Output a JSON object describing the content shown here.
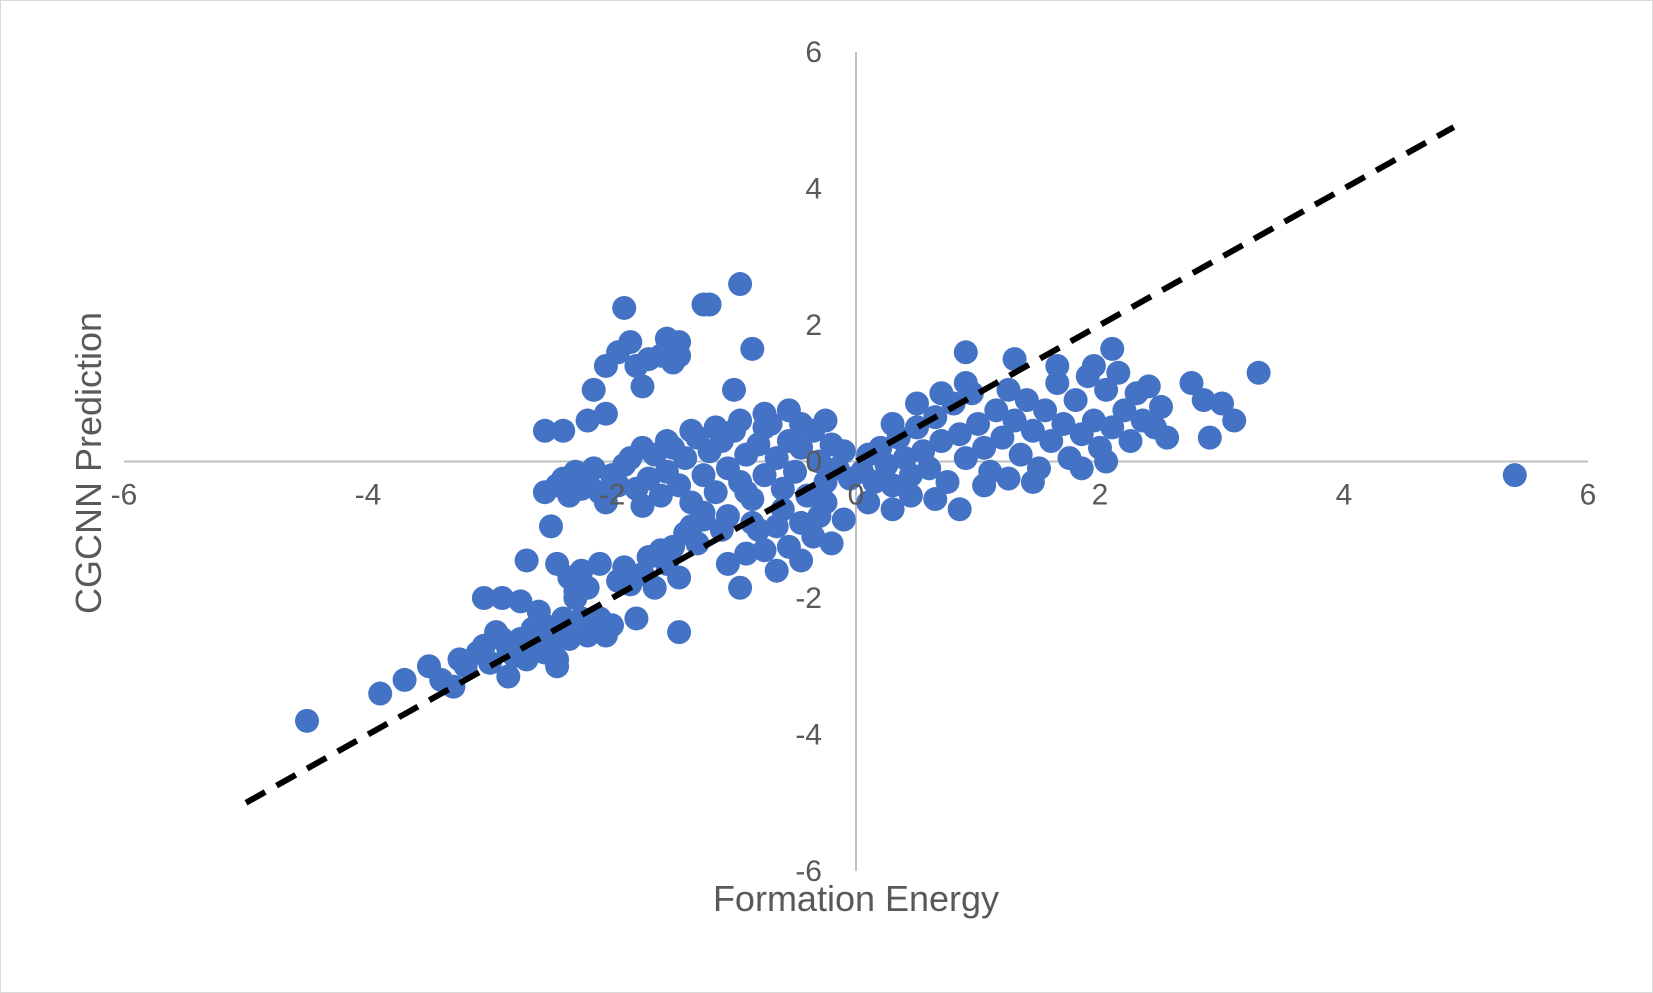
{
  "chart_data": {
    "type": "scatter",
    "title": "",
    "xlabel": "Formation Energy",
    "ylabel": "CGCNN Prediction",
    "xlim": [
      -6,
      6
    ],
    "ylim": [
      -6,
      6
    ],
    "xticks": [
      -6,
      -4,
      -2,
      0,
      2,
      4,
      6
    ],
    "yticks": [
      -6,
      -4,
      -2,
      0,
      2,
      4,
      6
    ],
    "grid": false,
    "legend": "none",
    "colors": {
      "points": "#4472C4",
      "reference_line": "#000000",
      "axes": "#bfbfbf"
    },
    "reference_line": {
      "style": "dashed",
      "x": [
        -5,
        4.9
      ],
      "y": [
        -5,
        4.9
      ]
    },
    "series": [
      {
        "points": [
          [
            -4.5,
            -3.8
          ],
          [
            -3.9,
            -3.4
          ],
          [
            -3.7,
            -3.2
          ],
          [
            -3.5,
            -3.0
          ],
          [
            -3.4,
            -3.2
          ],
          [
            -3.3,
            -3.3
          ],
          [
            -3.25,
            -2.9
          ],
          [
            -3.2,
            -3.0
          ],
          [
            -3.1,
            -2.8
          ],
          [
            -3.05,
            -2.7
          ],
          [
            -3.0,
            -2.95
          ],
          [
            -2.95,
            -2.5
          ],
          [
            -2.9,
            -2.6
          ],
          [
            -2.85,
            -2.75
          ],
          [
            -2.8,
            -2.85
          ],
          [
            -2.75,
            -2.6
          ],
          [
            -2.7,
            -2.9
          ],
          [
            -2.65,
            -2.45
          ],
          [
            -2.6,
            -2.7
          ],
          [
            -2.55,
            -2.8
          ],
          [
            -2.5,
            -2.5
          ],
          [
            -2.45,
            -2.9
          ],
          [
            -2.4,
            -2.3
          ],
          [
            -2.35,
            -2.6
          ],
          [
            -3.05,
            -2.0
          ],
          [
            -2.9,
            -2.0
          ],
          [
            -2.75,
            -2.05
          ],
          [
            -2.6,
            -2.2
          ],
          [
            -2.55,
            -2.4
          ],
          [
            -2.5,
            -2.7
          ],
          [
            -2.45,
            -3.0
          ],
          [
            -2.4,
            -2.5
          ],
          [
            -2.85,
            -3.15
          ],
          [
            -2.7,
            -1.45
          ],
          [
            -2.5,
            -0.95
          ],
          [
            -2.45,
            -1.5
          ],
          [
            -2.35,
            -1.7
          ],
          [
            -2.3,
            -2.0
          ],
          [
            -2.25,
            -2.3
          ],
          [
            -2.2,
            -2.55
          ],
          [
            -2.15,
            -2.45
          ],
          [
            -2.1,
            -2.3
          ],
          [
            -2.05,
            -2.55
          ],
          [
            -2.0,
            -2.4
          ],
          [
            -2.3,
            -1.9
          ],
          [
            -2.25,
            -1.6
          ],
          [
            -2.2,
            -1.85
          ],
          [
            -2.1,
            -1.5
          ],
          [
            -1.95,
            -1.75
          ],
          [
            -1.9,
            -1.55
          ],
          [
            -1.85,
            -1.8
          ],
          [
            -1.8,
            -2.3
          ],
          [
            -1.75,
            -1.65
          ],
          [
            -1.7,
            -1.4
          ],
          [
            -1.65,
            -1.85
          ],
          [
            -1.6,
            -1.3
          ],
          [
            -1.55,
            -1.5
          ],
          [
            -1.5,
            -1.25
          ],
          [
            -1.45,
            -2.5
          ],
          [
            -1.45,
            -1.7
          ],
          [
            -1.4,
            -1.05
          ],
          [
            -1.35,
            -0.95
          ],
          [
            -1.3,
            -1.2
          ],
          [
            -1.25,
            -0.85
          ],
          [
            -1.1,
            -1.0
          ],
          [
            -1.05,
            -1.5
          ],
          [
            -0.95,
            -1.85
          ],
          [
            -0.9,
            -1.35
          ],
          [
            -0.8,
            -1.0
          ],
          [
            -0.75,
            -1.3
          ],
          [
            -0.65,
            -1.6
          ],
          [
            -0.55,
            -1.25
          ],
          [
            -0.45,
            -1.45
          ],
          [
            -0.35,
            -1.1
          ],
          [
            -0.3,
            -0.8
          ],
          [
            -0.2,
            -1.2
          ],
          [
            -0.1,
            -0.85
          ],
          [
            -2.55,
            -0.45
          ],
          [
            -2.45,
            -0.35
          ],
          [
            -2.4,
            -0.25
          ],
          [
            -2.35,
            -0.5
          ],
          [
            -2.3,
            -0.15
          ],
          [
            -2.25,
            -0.4
          ],
          [
            -2.2,
            -0.3
          ],
          [
            -2.15,
            -0.1
          ],
          [
            -2.1,
            -0.45
          ],
          [
            -2.05,
            -0.6
          ],
          [
            -2.0,
            -0.2
          ],
          [
            -1.95,
            -0.35
          ],
          [
            -1.9,
            -0.05
          ],
          [
            -1.85,
            0.05
          ],
          [
            -1.8,
            -0.4
          ],
          [
            -1.75,
            -0.65
          ],
          [
            -1.7,
            -0.25
          ],
          [
            -1.65,
            0.1
          ],
          [
            -1.6,
            -0.5
          ],
          [
            -1.55,
            -0.15
          ],
          [
            -1.5,
            0.2
          ],
          [
            -1.45,
            -0.35
          ],
          [
            -1.4,
            0.05
          ],
          [
            -1.35,
            -0.6
          ],
          [
            -1.3,
            0.35
          ],
          [
            -1.25,
            -0.2
          ],
          [
            -1.2,
            0.15
          ],
          [
            -1.15,
            -0.45
          ],
          [
            -1.1,
            0.3
          ],
          [
            -1.05,
            -0.1
          ],
          [
            -1.0,
            0.45
          ],
          [
            -0.95,
            -0.3
          ],
          [
            -0.9,
            0.1
          ],
          [
            -0.85,
            -0.55
          ],
          [
            -0.8,
            0.25
          ],
          [
            -0.75,
            -0.2
          ],
          [
            -0.7,
            0.55
          ],
          [
            -0.65,
            0.05
          ],
          [
            -0.6,
            -0.4
          ],
          [
            -0.55,
            0.3
          ],
          [
            -0.5,
            -0.15
          ],
          [
            -0.45,
            0.2
          ],
          [
            -0.4,
            -0.5
          ],
          [
            -0.35,
            0.45
          ],
          [
            -0.3,
            0.0
          ],
          [
            -0.25,
            -0.3
          ],
          [
            -0.2,
            0.25
          ],
          [
            -0.15,
            -0.1
          ],
          [
            -0.1,
            0.15
          ],
          [
            -0.05,
            -0.25
          ],
          [
            -1.75,
            0.2
          ],
          [
            -1.55,
            0.3
          ],
          [
            -1.35,
            0.45
          ],
          [
            -1.15,
            0.5
          ],
          [
            -0.95,
            0.6
          ],
          [
            -0.75,
            0.7
          ],
          [
            -0.55,
            0.75
          ],
          [
            -0.45,
            0.55
          ],
          [
            -0.25,
            0.6
          ],
          [
            -1.25,
            -0.75
          ],
          [
            -1.05,
            -0.8
          ],
          [
            -0.85,
            -0.9
          ],
          [
            -0.65,
            -0.95
          ],
          [
            -0.45,
            -0.9
          ],
          [
            -0.25,
            -0.6
          ],
          [
            -2.55,
            0.45
          ],
          [
            -2.4,
            0.45
          ],
          [
            -2.2,
            0.6
          ],
          [
            -2.15,
            1.05
          ],
          [
            -2.05,
            0.7
          ],
          [
            -2.05,
            1.4
          ],
          [
            -1.95,
            1.6
          ],
          [
            -1.9,
            2.25
          ],
          [
            -1.85,
            1.75
          ],
          [
            -1.8,
            1.4
          ],
          [
            -1.75,
            1.1
          ],
          [
            -1.7,
            1.5
          ],
          [
            -1.6,
            1.55
          ],
          [
            -1.55,
            1.8
          ],
          [
            -1.5,
            1.45
          ],
          [
            -1.45,
            1.75
          ],
          [
            -1.45,
            1.55
          ],
          [
            -1.25,
            2.3
          ],
          [
            -1.2,
            2.3
          ],
          [
            -0.95,
            2.6
          ],
          [
            -0.85,
            1.65
          ],
          [
            -1.0,
            1.05
          ],
          [
            -0.75,
            0.5
          ],
          [
            0.05,
            -0.15
          ],
          [
            0.1,
            0.1
          ],
          [
            0.15,
            -0.3
          ],
          [
            0.2,
            0.2
          ],
          [
            0.25,
            -0.05
          ],
          [
            0.3,
            -0.35
          ],
          [
            0.35,
            0.35
          ],
          [
            0.4,
            0.05
          ],
          [
            0.45,
            -0.2
          ],
          [
            0.5,
            0.5
          ],
          [
            0.55,
            0.15
          ],
          [
            0.6,
            -0.1
          ],
          [
            0.65,
            0.65
          ],
          [
            0.7,
            0.3
          ],
          [
            0.75,
            -0.3
          ],
          [
            0.8,
            0.85
          ],
          [
            0.85,
            0.4
          ],
          [
            0.9,
            0.05
          ],
          [
            0.95,
            1.0
          ],
          [
            1.0,
            0.55
          ],
          [
            1.05,
            0.2
          ],
          [
            1.1,
            -0.15
          ],
          [
            1.15,
            0.75
          ],
          [
            1.2,
            0.35
          ],
          [
            1.25,
            1.05
          ],
          [
            1.3,
            0.6
          ],
          [
            1.35,
            0.1
          ],
          [
            1.4,
            0.9
          ],
          [
            1.45,
            0.45
          ],
          [
            1.5,
            -0.1
          ],
          [
            1.55,
            0.75
          ],
          [
            1.6,
            0.3
          ],
          [
            1.65,
            1.15
          ],
          [
            1.7,
            0.55
          ],
          [
            1.75,
            0.05
          ],
          [
            1.8,
            0.9
          ],
          [
            1.85,
            0.4
          ],
          [
            1.9,
            1.25
          ],
          [
            1.95,
            0.6
          ],
          [
            2.0,
            0.2
          ],
          [
            2.05,
            1.05
          ],
          [
            2.1,
            0.5
          ],
          [
            2.15,
            1.3
          ],
          [
            2.2,
            0.75
          ],
          [
            2.25,
            0.3
          ],
          [
            2.3,
            1.0
          ],
          [
            2.35,
            0.6
          ],
          [
            2.4,
            1.1
          ],
          [
            2.45,
            0.5
          ],
          [
            2.5,
            0.8
          ],
          [
            0.3,
            0.55
          ],
          [
            0.5,
            0.85
          ],
          [
            0.7,
            1.0
          ],
          [
            0.9,
            1.15
          ],
          [
            0.45,
            -0.5
          ],
          [
            0.65,
            -0.55
          ],
          [
            0.85,
            -0.7
          ],
          [
            1.05,
            -0.35
          ],
          [
            1.25,
            -0.25
          ],
          [
            1.45,
            -0.3
          ],
          [
            1.65,
            1.4
          ],
          [
            1.95,
            1.4
          ],
          [
            0.1,
            -0.6
          ],
          [
            0.3,
            -0.7
          ],
          [
            1.85,
            -0.1
          ],
          [
            2.05,
            0.0
          ],
          [
            -0.9,
            -0.45
          ],
          [
            -0.6,
            -0.7
          ],
          [
            -0.3,
            -0.45
          ],
          [
            0.9,
            1.6
          ],
          [
            1.3,
            1.5
          ],
          [
            2.1,
            1.65
          ],
          [
            2.55,
            0.35
          ],
          [
            2.75,
            1.15
          ],
          [
            2.85,
            0.9
          ],
          [
            2.9,
            0.35
          ],
          [
            3.0,
            0.85
          ],
          [
            3.1,
            0.6
          ],
          [
            3.3,
            1.3
          ],
          [
            5.4,
            -0.2
          ]
        ]
      }
    ]
  }
}
